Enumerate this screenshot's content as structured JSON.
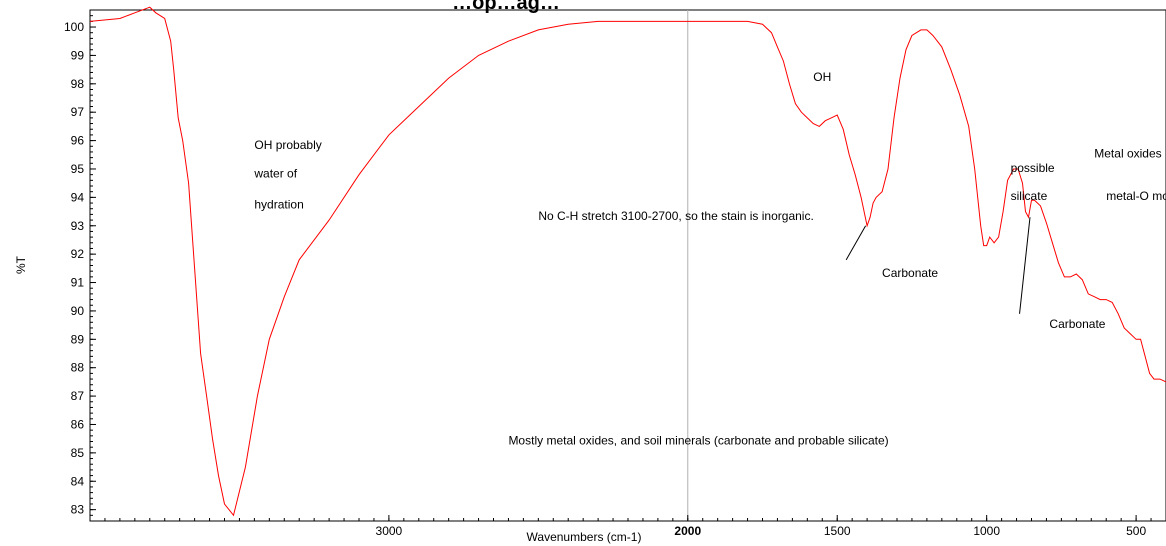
{
  "chart_data": {
    "type": "line",
    "title": "…op…ag…",
    "xlabel": "Wavenumbers (cm-1)",
    "ylabel": "%T",
    "xlim": [
      4000,
      400
    ],
    "ylim": [
      82.6,
      100.6
    ],
    "x_reversed": true,
    "grid": false,
    "x_ticks": [
      "3000",
      "2000",
      "1500",
      "1000",
      "500"
    ],
    "x_ticks_bold": [
      "2000"
    ],
    "y_ticks": [
      "100",
      "99",
      "98",
      "97",
      "96",
      "95",
      "94",
      "93",
      "92",
      "91",
      "90",
      "89",
      "88",
      "87",
      "86",
      "85",
      "84",
      "83"
    ],
    "reference_line_x": 2000,
    "series": [
      {
        "color": "#ff0000",
        "points": [
          [
            4000,
            100.2
          ],
          [
            3900,
            100.3
          ],
          [
            3850,
            100.5
          ],
          [
            3800,
            100.7
          ],
          [
            3780,
            100.5
          ],
          [
            3750,
            100.3
          ],
          [
            3730,
            99.5
          ],
          [
            3720,
            98.5
          ],
          [
            3705,
            96.8
          ],
          [
            3690,
            96.0
          ],
          [
            3670,
            94.5
          ],
          [
            3650,
            91.5
          ],
          [
            3630,
            88.5
          ],
          [
            3610,
            87.0
          ],
          [
            3590,
            85.5
          ],
          [
            3570,
            84.2
          ],
          [
            3550,
            83.2
          ],
          [
            3520,
            82.8
          ],
          [
            3480,
            84.5
          ],
          [
            3440,
            87.0
          ],
          [
            3400,
            89.0
          ],
          [
            3350,
            90.5
          ],
          [
            3300,
            91.8
          ],
          [
            3200,
            93.2
          ],
          [
            3100,
            94.8
          ],
          [
            3000,
            96.2
          ],
          [
            2900,
            97.2
          ],
          [
            2800,
            98.2
          ],
          [
            2700,
            99.0
          ],
          [
            2600,
            99.5
          ],
          [
            2500,
            99.9
          ],
          [
            2400,
            100.1
          ],
          [
            2300,
            100.2
          ],
          [
            2200,
            100.2
          ],
          [
            2100,
            100.2
          ],
          [
            2000,
            100.2
          ],
          [
            1900,
            100.2
          ],
          [
            1850,
            100.2
          ],
          [
            1800,
            100.2
          ],
          [
            1750,
            100.1
          ],
          [
            1720,
            99.8
          ],
          [
            1700,
            99.3
          ],
          [
            1680,
            98.8
          ],
          [
            1660,
            98.0
          ],
          [
            1640,
            97.3
          ],
          [
            1620,
            97.0
          ],
          [
            1600,
            96.8
          ],
          [
            1580,
            96.6
          ],
          [
            1560,
            96.5
          ],
          [
            1540,
            96.7
          ],
          [
            1520,
            96.8
          ],
          [
            1500,
            96.9
          ],
          [
            1480,
            96.4
          ],
          [
            1460,
            95.5
          ],
          [
            1440,
            94.8
          ],
          [
            1420,
            94.0
          ],
          [
            1400,
            93.0
          ],
          [
            1390,
            93.3
          ],
          [
            1380,
            93.8
          ],
          [
            1370,
            94.0
          ],
          [
            1350,
            94.2
          ],
          [
            1330,
            95.0
          ],
          [
            1310,
            96.8
          ],
          [
            1290,
            98.2
          ],
          [
            1270,
            99.2
          ],
          [
            1250,
            99.7
          ],
          [
            1220,
            99.9
          ],
          [
            1200,
            99.9
          ],
          [
            1180,
            99.7
          ],
          [
            1150,
            99.3
          ],
          [
            1120,
            98.5
          ],
          [
            1090,
            97.6
          ],
          [
            1060,
            96.5
          ],
          [
            1040,
            95.0
          ],
          [
            1020,
            93.0
          ],
          [
            1010,
            92.3
          ],
          [
            1000,
            92.3
          ],
          [
            990,
            92.6
          ],
          [
            975,
            92.4
          ],
          [
            960,
            92.6
          ],
          [
            945,
            93.5
          ],
          [
            930,
            94.6
          ],
          [
            910,
            95.0
          ],
          [
            895,
            95.0
          ],
          [
            880,
            94.5
          ],
          [
            870,
            93.5
          ],
          [
            860,
            93.3
          ],
          [
            850,
            93.9
          ],
          [
            840,
            93.9
          ],
          [
            820,
            93.7
          ],
          [
            800,
            93.1
          ],
          [
            780,
            92.4
          ],
          [
            760,
            91.7
          ],
          [
            740,
            91.2
          ],
          [
            720,
            91.2
          ],
          [
            700,
            91.3
          ],
          [
            680,
            91.1
          ],
          [
            660,
            90.6
          ],
          [
            640,
            90.5
          ],
          [
            620,
            90.4
          ],
          [
            600,
            90.4
          ],
          [
            580,
            90.3
          ],
          [
            560,
            89.9
          ],
          [
            540,
            89.4
          ],
          [
            520,
            89.2
          ],
          [
            500,
            89.0
          ],
          [
            485,
            89.0
          ],
          [
            470,
            88.4
          ],
          [
            455,
            87.8
          ],
          [
            440,
            87.6
          ],
          [
            420,
            87.6
          ],
          [
            400,
            87.5
          ]
        ]
      }
    ],
    "annotations": [
      {
        "text": "OH probably",
        "x": 3450,
        "y": 95.7
      },
      {
        "text": "water of",
        "x": 3450,
        "y": 94.7
      },
      {
        "text": "hydration",
        "x": 3450,
        "y": 93.6
      },
      {
        "text": "No C-H stretch 3100-2700, so the stain is inorganic.",
        "x": 2500,
        "y": 93.2
      },
      {
        "text": "OH",
        "x": 1580,
        "y": 98.1
      },
      {
        "text": "Carbonate",
        "x": 1350,
        "y": 91.2
      },
      {
        "text": "possible",
        "x": 920,
        "y": 94.9
      },
      {
        "text": "silicate",
        "x": 920,
        "y": 93.9
      },
      {
        "text": "Metal oxides",
        "x": 640,
        "y": 95.4
      },
      {
        "text": "metal-O modes",
        "x": 600,
        "y": 93.9
      },
      {
        "text": "Carbonate",
        "x": 790,
        "y": 89.4
      },
      {
        "text": "Mostly metal oxides, and soil minerals (carbonate and probable silicate)",
        "x": 2600,
        "y": 85.3
      }
    ],
    "pointer_lines": [
      {
        "from": [
          1405,
          93.0
        ],
        "to": [
          1470,
          91.8
        ]
      },
      {
        "from": [
          855,
          93.3
        ],
        "to": [
          890,
          89.9
        ]
      }
    ]
  }
}
